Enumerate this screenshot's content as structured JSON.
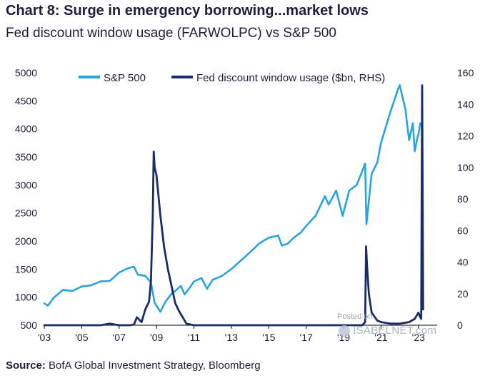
{
  "title": "Chart 8: Surge in emergency borrowing...market lows",
  "subtitle": "Fed discount window usage (FARWOLPC) vs S&P 500",
  "source_label": "Source:",
  "source_text": "BofA Global Investment Strategy, Bloomberg",
  "watermark_top": "Posted on",
  "watermark_main": "ISABELNET.com",
  "colors": {
    "sp500": "#27a3de",
    "fed": "#1b2a6b",
    "text": "#1b1f3b",
    "axis": "#000000"
  },
  "chart_data": {
    "type": "line",
    "title": "Chart 8: Surge in emergency borrowing...market lows",
    "subtitle": "Fed discount window usage (FARWOLPC) vs S&P 500",
    "x_ticks": [
      "'03",
      "'05",
      "'07",
      "'09",
      "'11",
      "'13",
      "'15",
      "'17",
      "'19",
      "'21",
      "'23"
    ],
    "x_range": [
      2003.0,
      2024.0
    ],
    "y_left": {
      "range": [
        500,
        5000
      ],
      "ticks": [
        500,
        1000,
        1500,
        2000,
        2500,
        3000,
        3500,
        4000,
        4500,
        5000
      ]
    },
    "y_right": {
      "range": [
        0,
        160
      ],
      "ticks": [
        0,
        20,
        40,
        60,
        80,
        100,
        120,
        140,
        160
      ]
    },
    "legend": {
      "placement": "top-left"
    },
    "series": [
      {
        "name": "S&P 500",
        "axis": "left",
        "x": [
          2003.0,
          2003.2,
          2003.5,
          2004.0,
          2004.5,
          2005.0,
          2005.5,
          2006.0,
          2006.5,
          2007.0,
          2007.5,
          2007.8,
          2008.0,
          2008.4,
          2008.7,
          2008.9,
          2009.2,
          2009.5,
          2009.8,
          2010.0,
          2010.3,
          2010.5,
          2010.8,
          2011.0,
          2011.4,
          2011.7,
          2012.0,
          2012.5,
          2013.0,
          2013.5,
          2014.0,
          2014.5,
          2015.0,
          2015.5,
          2015.7,
          2016.0,
          2016.3,
          2016.7,
          2017.0,
          2017.5,
          2018.0,
          2018.2,
          2018.6,
          2018.95,
          2019.3,
          2019.7,
          2020.0,
          2020.15,
          2020.22,
          2020.5,
          2020.8,
          2021.0,
          2021.5,
          2021.9,
          2022.0,
          2022.3,
          2022.5,
          2022.7,
          2022.8,
          2022.95,
          2023.0,
          2023.1,
          2023.2
        ],
        "values": [
          890,
          850,
          990,
          1130,
          1110,
          1190,
          1210,
          1280,
          1290,
          1440,
          1520,
          1540,
          1400,
          1380,
          1260,
          900,
          740,
          930,
          1060,
          1110,
          1200,
          1050,
          1180,
          1280,
          1340,
          1150,
          1310,
          1380,
          1500,
          1650,
          1800,
          1960,
          2060,
          2100,
          1920,
          1950,
          2050,
          2150,
          2270,
          2450,
          2800,
          2650,
          2900,
          2450,
          2900,
          3000,
          3250,
          3380,
          2300,
          3200,
          3400,
          3750,
          4300,
          4700,
          4780,
          4350,
          3800,
          4100,
          3600,
          3850,
          3900,
          4100,
          4050
        ]
      },
      {
        "name": "Fed discount window usage ($bn, RHS)",
        "axis": "right",
        "x": [
          2003.0,
          2004.0,
          2005.0,
          2006.0,
          2006.5,
          2007.0,
          2007.6,
          2007.8,
          2007.95,
          2008.2,
          2008.4,
          2008.6,
          2008.7,
          2008.8,
          2008.85,
          2008.9,
          2009.0,
          2009.2,
          2009.4,
          2009.6,
          2009.8,
          2010.0,
          2010.2,
          2010.4,
          2010.6,
          2011.0,
          2012.0,
          2014.0,
          2016.0,
          2018.0,
          2019.0,
          2020.0,
          2020.15,
          2020.2,
          2020.25,
          2020.35,
          2020.5,
          2020.8,
          2021.0,
          2021.5,
          2022.0,
          2022.5,
          2022.8,
          2023.0,
          2023.1,
          2023.15,
          2023.2,
          2023.25
        ],
        "values": [
          0,
          0,
          0,
          0,
          1,
          0,
          0,
          0.5,
          5,
          2,
          10,
          15,
          28,
          70,
          110,
          100,
          95,
          70,
          50,
          36,
          25,
          14,
          9,
          5,
          1,
          0,
          0,
          0,
          0,
          0,
          0,
          0,
          2,
          50,
          38,
          20,
          8,
          3,
          2,
          1,
          1,
          2,
          4,
          8,
          5,
          4,
          152,
          10
        ]
      }
    ]
  }
}
